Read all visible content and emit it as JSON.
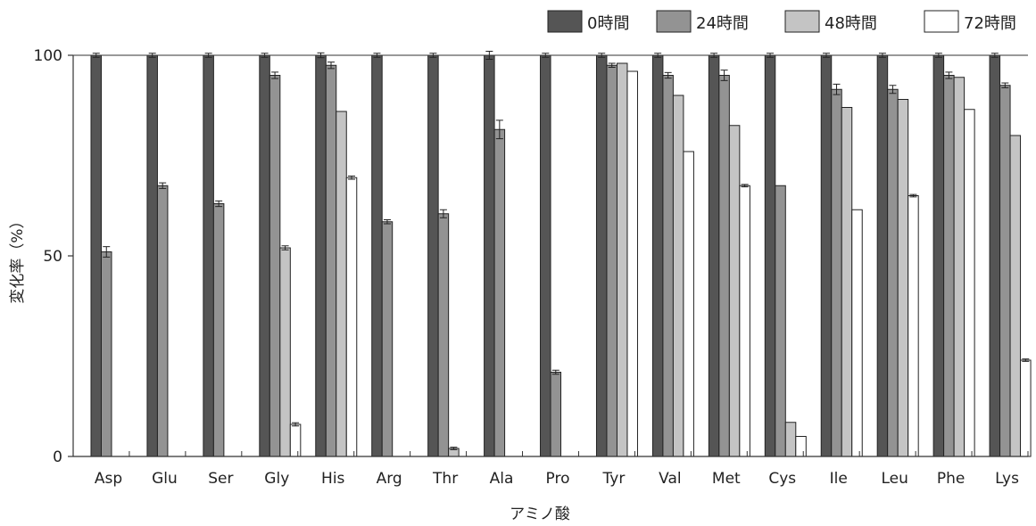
{
  "chart_data": {
    "type": "bar",
    "title": "",
    "xlabel": "アミノ酸",
    "ylabel": "変化率（%）",
    "ylim": [
      0,
      100
    ],
    "yticks": [
      0,
      50,
      100
    ],
    "grid": false,
    "legend_position": "top-right",
    "categories": [
      "Asp",
      "Glu",
      "Ser",
      "Gly",
      "His",
      "Arg",
      "Thr",
      "Ala",
      "Pro",
      "Tyr",
      "Val",
      "Met",
      "Cys",
      "Ile",
      "Leu",
      "Phe",
      "Lys"
    ],
    "series": [
      {
        "name": "0時間",
        "color": "#555555",
        "values": [
          100,
          100,
          100,
          100,
          100,
          100,
          100,
          100,
          100,
          100,
          100,
          100,
          100,
          100,
          100,
          100,
          100
        ],
        "errors": [
          0.5,
          0.5,
          0.5,
          0.5,
          0.6,
          0.5,
          0.5,
          1.0,
          0.5,
          0.5,
          0.5,
          0.5,
          0.5,
          0.5,
          0.5,
          0.5,
          0.5
        ]
      },
      {
        "name": "24時間",
        "color": "#939393",
        "values": [
          51,
          67.5,
          63,
          95,
          97.5,
          58.5,
          60.5,
          81.5,
          21,
          97.5,
          95,
          95,
          67.5,
          91.5,
          91.5,
          95,
          92.5
        ],
        "errors": [
          1.3,
          0.7,
          0.7,
          0.8,
          0.8,
          0.5,
          1.0,
          2.3,
          0.5,
          0.5,
          0.7,
          1.3,
          0,
          1.3,
          1.0,
          0.8,
          0.6
        ]
      },
      {
        "name": "48時間",
        "color": "#c4c4c4",
        "values": [
          0,
          0,
          0,
          52,
          86,
          0,
          2,
          0,
          0,
          98,
          90,
          82.5,
          8.5,
          87,
          89,
          94.5,
          80
        ],
        "errors": [
          0,
          0,
          0,
          0.5,
          0,
          0,
          0.3,
          0,
          0,
          0,
          0,
          0,
          0,
          0,
          0,
          0,
          0
        ]
      },
      {
        "name": "72時間",
        "color": "#ffffff",
        "values": [
          0,
          0,
          0,
          8,
          69.5,
          0,
          0,
          0,
          0,
          96,
          76,
          67.5,
          5,
          61.5,
          65,
          86.5,
          24
        ],
        "errors": [
          0,
          0,
          0,
          0.4,
          0.4,
          0,
          0,
          0,
          0,
          0,
          0,
          0.3,
          0,
          0,
          0.3,
          0,
          0.3
        ]
      }
    ]
  }
}
